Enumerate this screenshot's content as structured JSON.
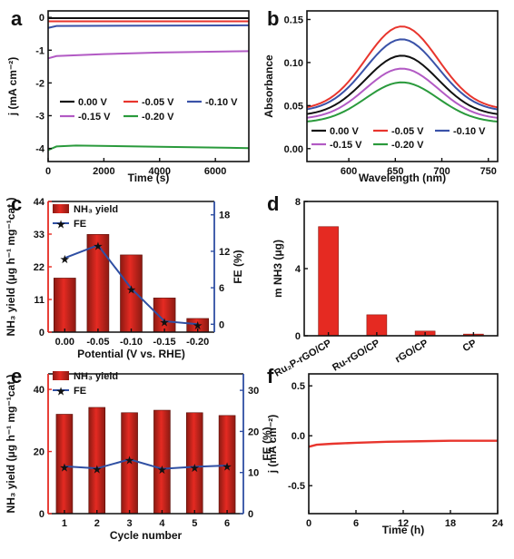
{
  "colors": {
    "black": "#111111",
    "red": "#e8352d",
    "blue": "#3a52a8",
    "magenta": "#b25ac4",
    "green": "#2a9a3c",
    "barRed": "#e52a22",
    "barRedDark": "#8b1a12",
    "axisBlue": "#2f4fa3"
  },
  "chart_data": [
    {
      "panel": "a",
      "type": "line",
      "xlabel": "Time (s)",
      "ylabel": "j (mA cm⁻²)",
      "xlim": [
        0,
        7200
      ],
      "ylim": [
        -4.4,
        0.2
      ],
      "xticks": [
        "0",
        "2000",
        "4000",
        "6000"
      ],
      "xtick_values": [
        0,
        2000,
        4000,
        6000
      ],
      "yticks": [
        "0",
        "-1",
        "-2",
        "-3",
        "-4"
      ],
      "ytick_values": [
        0,
        -1,
        -2,
        -3,
        -4
      ],
      "legend": [
        "0.00 V",
        "-0.05 V",
        "-0.10 V",
        "-0.15 V",
        "-0.20 V"
      ],
      "series": [
        {
          "name": "0.00 V",
          "color": "#111111",
          "x": [
            0,
            7200
          ],
          "y": [
            -0.02,
            -0.02
          ]
        },
        {
          "name": "-0.05 V",
          "color": "#e8352d",
          "x": [
            0,
            7200
          ],
          "y": [
            -0.12,
            -0.12
          ]
        },
        {
          "name": "-0.10 V",
          "color": "#3a52a8",
          "x": [
            0,
            300,
            7200
          ],
          "y": [
            -0.32,
            -0.26,
            -0.24
          ]
        },
        {
          "name": "-0.15 V",
          "color": "#b25ac4",
          "x": [
            0,
            300,
            2000,
            4000,
            7200
          ],
          "y": [
            -1.25,
            -1.18,
            -1.12,
            -1.07,
            -1.03
          ]
        },
        {
          "name": "-0.20 V",
          "color": "#2a9a3c",
          "x": [
            0,
            300,
            1000,
            4000,
            7200
          ],
          "y": [
            -4.05,
            -3.94,
            -3.91,
            -3.95,
            -3.99
          ]
        }
      ]
    },
    {
      "panel": "b",
      "type": "line",
      "xlabel": "Wavelength (nm)",
      "ylabel": "Absorbance",
      "xlim": [
        555,
        760
      ],
      "ylim": [
        -0.015,
        0.16
      ],
      "xticks": [
        "600",
        "650",
        "700",
        "750"
      ],
      "xtick_values": [
        600,
        650,
        700,
        750
      ],
      "yticks": [
        "0.00",
        "0.05",
        "0.10",
        "0.15"
      ],
      "ytick_values": [
        0,
        0.05,
        0.1,
        0.15
      ],
      "legend": [
        "0.00 V",
        "-0.05 V",
        "-0.10 V",
        "-0.15 V",
        "-0.20 V"
      ],
      "peak_wavelength": 657,
      "series": [
        {
          "name": "0.00 V",
          "color": "#111111",
          "baseline": 0.038,
          "peak": 0.108
        },
        {
          "name": "-0.05 V",
          "color": "#e8352d",
          "baseline": 0.045,
          "peak": 0.142
        },
        {
          "name": "-0.10 V",
          "color": "#3a52a8",
          "baseline": 0.043,
          "peak": 0.127
        },
        {
          "name": "-0.15 V",
          "color": "#b25ac4",
          "baseline": 0.034,
          "peak": 0.093
        },
        {
          "name": "-0.20 V",
          "color": "#2a9a3c",
          "baseline": 0.03,
          "peak": 0.077
        }
      ]
    },
    {
      "panel": "c",
      "type": "bar+line",
      "categories": [
        "0.00",
        "-0.05",
        "-0.10",
        "-0.15",
        "-0.20"
      ],
      "xlabel": "Potential (V vs. RHE)",
      "ylabel": "NH₃ yield (μg h⁻¹ mg⁻¹cat.)",
      "y2label": "FE (%)",
      "ylim": [
        0,
        44
      ],
      "yticks": [
        "0",
        "11",
        "22",
        "33",
        "44"
      ],
      "ytick_values": [
        0,
        11,
        22,
        33,
        44
      ],
      "y2lim": [
        -1.3,
        20.2
      ],
      "y2ticks": [
        "0",
        "6",
        "12",
        "18"
      ],
      "y2tick_values": [
        0,
        6,
        12,
        18
      ],
      "series": [
        {
          "name": "NH₃ yield",
          "values": [
            18.2,
            32.9,
            26.0,
            11.5,
            4.6
          ]
        },
        {
          "name": "FE",
          "values": [
            10.9,
            13.0,
            5.9,
            0.5,
            0.0
          ]
        }
      ]
    },
    {
      "panel": "d",
      "type": "bar",
      "categories": [
        "Ru₂P-rGO/CP",
        "Ru-rGO/CP",
        "rGO/CP",
        "CP"
      ],
      "ylabel": "m NH3 (μg)",
      "ylim": [
        0,
        8.0
      ],
      "yticks": [
        "0",
        "4",
        "8"
      ],
      "ytick_values": [
        0,
        4,
        8
      ],
      "values": [
        6.5,
        1.25,
        0.28,
        0.1
      ]
    },
    {
      "panel": "e",
      "type": "bar+line",
      "categories": [
        "1",
        "2",
        "3",
        "4",
        "5",
        "6"
      ],
      "xlabel": "Cycle number",
      "ylabel": "NH₃ yield (μg h⁻¹ mg⁻¹cat.)",
      "y2label": "FE (%)",
      "ylim": [
        0,
        45
      ],
      "yticks": [
        "0",
        "20",
        "40"
      ],
      "ytick_values": [
        0,
        20,
        40
      ],
      "y2lim": [
        0,
        34
      ],
      "y2ticks": [
        "0",
        "10",
        "20",
        "30"
      ],
      "y2tick_values": [
        0,
        10,
        20,
        30
      ],
      "series": [
        {
          "name": "NH₃ yield",
          "values": [
            32.0,
            34.2,
            32.5,
            33.3,
            32.5,
            31.6
          ]
        },
        {
          "name": "FE",
          "values": [
            11.5,
            11.0,
            13.2,
            10.9,
            11.4,
            11.7
          ]
        }
      ]
    },
    {
      "panel": "f",
      "type": "line",
      "xlabel": "Time (h)",
      "ylabel": "j (mA cm⁻²)",
      "xlim": [
        0,
        24
      ],
      "ylim": [
        -0.78,
        0.62
      ],
      "xticks": [
        "0",
        "6",
        "12",
        "18",
        "24"
      ],
      "xtick_values": [
        0,
        6,
        12,
        18,
        24
      ],
      "yticks": [
        "0.5",
        "0.0",
        "-0.5"
      ],
      "ytick_values": [
        0.5,
        0,
        -0.5
      ],
      "series": [
        {
          "name": "",
          "color": "#e8352d",
          "x": [
            0,
            1,
            3,
            6,
            10,
            14,
            18,
            22,
            24
          ],
          "y": [
            -0.11,
            -0.09,
            -0.08,
            -0.07,
            -0.06,
            -0.055,
            -0.05,
            -0.05,
            -0.05
          ]
        }
      ]
    }
  ],
  "panels": {
    "a": "a",
    "b": "b",
    "c": "c",
    "d": "d",
    "e": "e",
    "f": "f"
  },
  "misc": {
    "legend_c_yield": "NH₃ yield",
    "legend_c_fe": "FE",
    "legend_e_yield": "NH₃ yield",
    "legend_e_fe": "FE"
  }
}
